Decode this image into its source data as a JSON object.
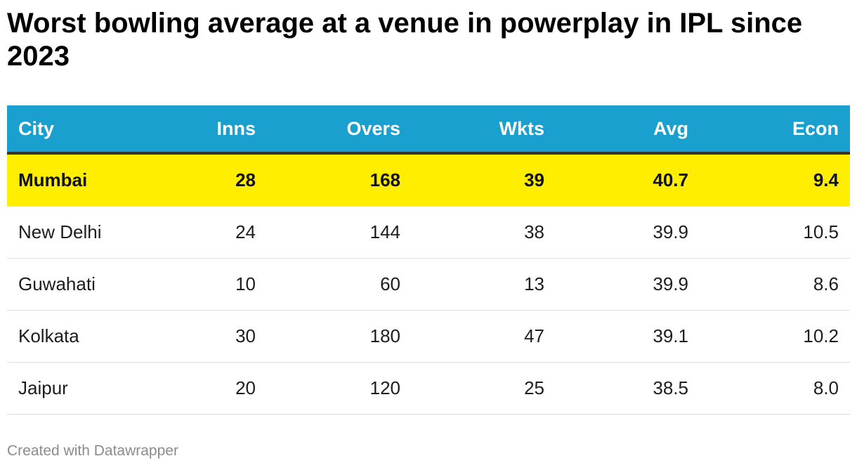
{
  "title": "Worst bowling average at a venue in powerplay in IPL since 2023",
  "credit": "Created with Datawrapper",
  "colors": {
    "header_bg": "#1aa0cf",
    "header_text": "#ffffff",
    "highlight_row": "#ffee00",
    "row_divider": "#dddddd"
  },
  "chart_data": {
    "type": "table",
    "title": "Worst bowling average at a venue in powerplay in IPL since 2023",
    "columns": [
      "City",
      "Inns",
      "Overs",
      "Wkts",
      "Avg",
      "Econ"
    ],
    "rows": [
      {
        "cells": [
          "Mumbai",
          "28",
          "168",
          "39",
          "40.7",
          "9.4"
        ],
        "highlight": true
      },
      {
        "cells": [
          "New Delhi",
          "24",
          "144",
          "38",
          "39.9",
          "10.5"
        ],
        "highlight": false
      },
      {
        "cells": [
          "Guwahati",
          "10",
          "60",
          "13",
          "39.9",
          "8.6"
        ],
        "highlight": false
      },
      {
        "cells": [
          "Kolkata",
          "30",
          "180",
          "47",
          "39.1",
          "10.2"
        ],
        "highlight": false
      },
      {
        "cells": [
          "Jaipur",
          "20",
          "120",
          "25",
          "38.5",
          "8.0"
        ],
        "highlight": false
      }
    ]
  }
}
